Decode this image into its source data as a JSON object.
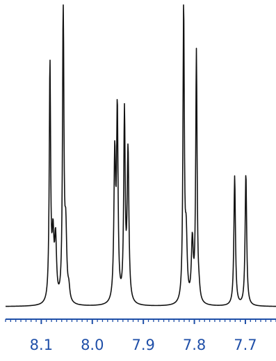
{
  "chart_data": {
    "type": "line",
    "x_axis": {
      "min": 7.64,
      "max": 8.17,
      "reversed": true,
      "tick_labels": [
        "8.1",
        "8.0",
        "7.9",
        "7.8",
        "7.7"
      ],
      "major_ticks": [
        8.1,
        8.0,
        7.9,
        7.8,
        7.7
      ],
      "minor_tick_step": 0.01
    },
    "y_axis": {
      "min": 0,
      "max": 1.0,
      "visible": false
    },
    "grid": false,
    "legend": "none",
    "colors": {
      "spectrum": "#111111",
      "axis": "#1f4fa8"
    },
    "series": [
      {
        "peaks": [
          {
            "x": 8.083,
            "height": 0.79,
            "width": 0.0016
          },
          {
            "x": 8.077,
            "height": 0.2,
            "width": 0.0022
          },
          {
            "x": 8.072,
            "height": 0.2,
            "width": 0.0022
          },
          {
            "x": 8.057,
            "height": 1.0,
            "width": 0.0016
          },
          {
            "x": 8.052,
            "height": 0.22,
            "width": 0.0022
          },
          {
            "x": 8.046,
            "height": 0.04,
            "width": 0.0022
          },
          {
            "x": 7.956,
            "height": 0.48,
            "width": 0.002
          },
          {
            "x": 7.951,
            "height": 0.62,
            "width": 0.0017
          },
          {
            "x": 7.937,
            "height": 0.62,
            "width": 0.0017
          },
          {
            "x": 7.93,
            "height": 0.5,
            "width": 0.002
          },
          {
            "x": 7.821,
            "height": 0.98,
            "width": 0.0016
          },
          {
            "x": 7.816,
            "height": 0.2,
            "width": 0.0022
          },
          {
            "x": 7.804,
            "height": 0.2,
            "width": 0.0022
          },
          {
            "x": 7.796,
            "height": 0.83,
            "width": 0.0016
          },
          {
            "x": 7.791,
            "height": 0.03,
            "width": 0.0022
          },
          {
            "x": 7.721,
            "height": 0.43,
            "width": 0.0018
          },
          {
            "x": 7.699,
            "height": 0.44,
            "width": 0.0018
          }
        ]
      }
    ]
  }
}
